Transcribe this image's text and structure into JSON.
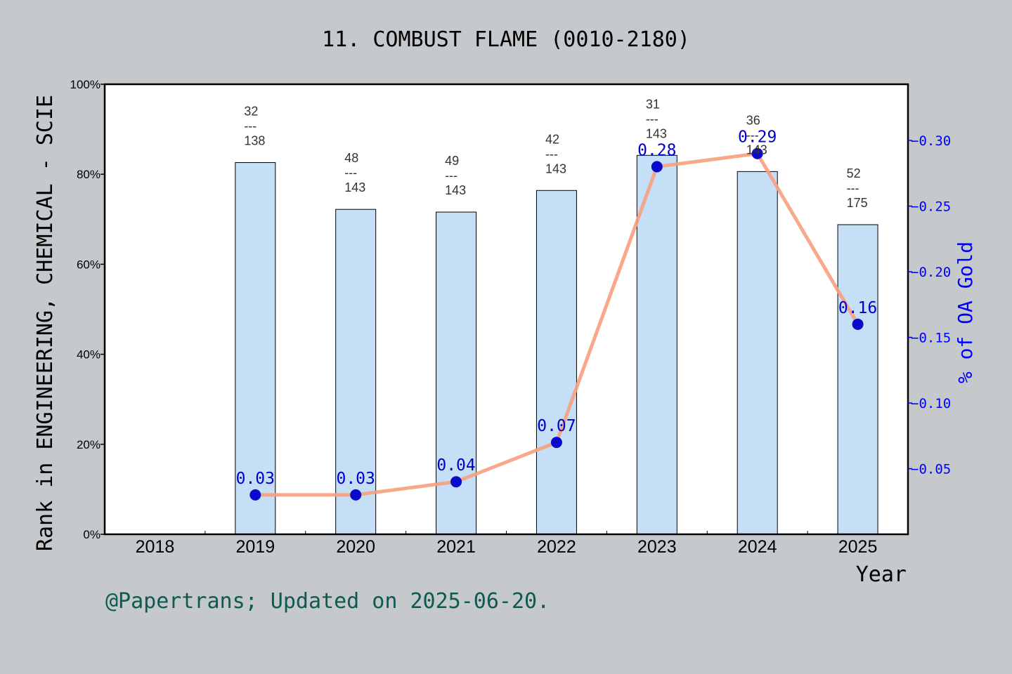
{
  "title": "11. COMBUST FLAME (0010-2180)",
  "footer": "@Papertrans; Updated on 2025-06-20.",
  "colors": {
    "background": "#c5c9cc",
    "bar_fill": "#c5dff6",
    "line": "#f8a07e",
    "marker": "#0a0acc",
    "right_axis": "#0000ff",
    "footer_text": "#0e5a50"
  },
  "chart_data": {
    "type": "bar+line",
    "xlabel": "Year",
    "ylabel_left": "Rank in ENGINEERING, CHEMICAL - SCIE",
    "ylabel_right": "% of OA Gold",
    "categories": [
      "2018",
      "2019",
      "2020",
      "2021",
      "2022",
      "2023",
      "2024",
      "2025"
    ],
    "ylim_left": [
      0,
      100
    ],
    "ytick_left_labels": [
      "0%",
      "20%",
      "40%",
      "60%",
      "80%",
      "100%"
    ],
    "ylim_right": [
      0,
      0.3428
    ],
    "ytick_right_labels": [
      "0.05",
      "0.10",
      "0.15",
      "0.20",
      "0.25",
      "0.30"
    ],
    "bars": {
      "name": "Rank percentile",
      "values": [
        null,
        82.6,
        72.2,
        71.6,
        76.4,
        84.2,
        80.6,
        68.8
      ],
      "labels": [
        null,
        {
          "rank": "32",
          "sep": "---",
          "total": "138"
        },
        {
          "rank": "48",
          "sep": "---",
          "total": "143"
        },
        {
          "rank": "49",
          "sep": "---",
          "total": "143"
        },
        {
          "rank": "42",
          "sep": "---",
          "total": "143"
        },
        {
          "rank": "31",
          "sep": "---",
          "total": "143"
        },
        {
          "rank": "36",
          "sep": "---",
          "total": "143"
        },
        {
          "rank": "52",
          "sep": "---",
          "total": "175"
        }
      ]
    },
    "line": {
      "name": "% of OA Gold",
      "values": [
        null,
        0.03,
        0.03,
        0.04,
        0.07,
        0.28,
        0.29,
        0.16
      ],
      "labels": [
        null,
        "0.03",
        "0.03",
        "0.04",
        "0.07",
        "0.28",
        "0.29",
        "0.16"
      ]
    },
    "grid": false,
    "legend": "none"
  }
}
